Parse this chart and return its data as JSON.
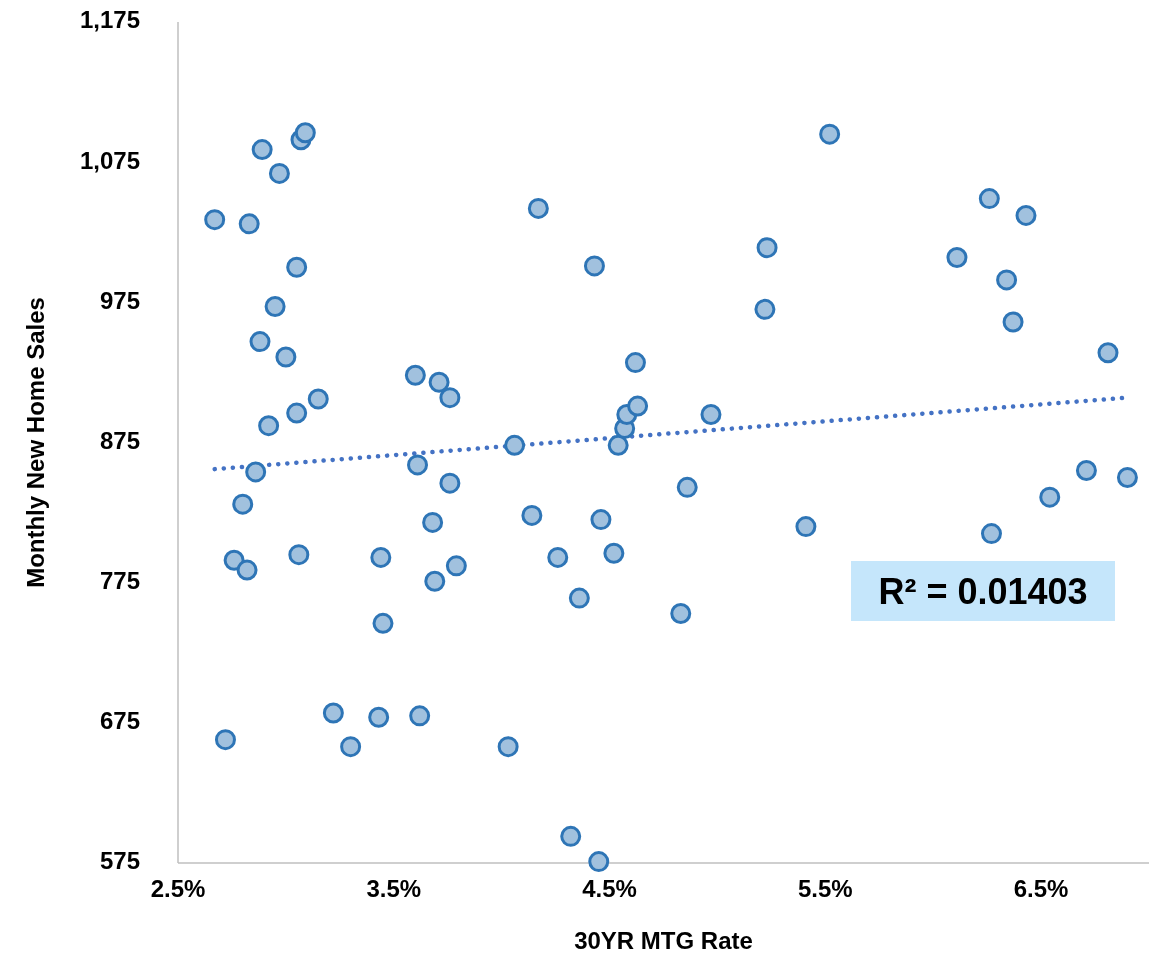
{
  "chart_data": {
    "type": "scatter",
    "xlabel": "30YR MTG Rate",
    "ylabel": "Monthly New Home Sales",
    "xlim": [
      2.5,
      7.0
    ],
    "ylim": [
      575,
      1175
    ],
    "xticks": [
      {
        "value": 2.5,
        "label": "2.5%"
      },
      {
        "value": 3.5,
        "label": "3.5%"
      },
      {
        "value": 4.5,
        "label": "4.5%"
      },
      {
        "value": 5.5,
        "label": "5.5%"
      },
      {
        "value": 6.5,
        "label": "6.5%"
      }
    ],
    "yticks": [
      575,
      675,
      775,
      875,
      975,
      {
        "value": 1075,
        "label": "1,075"
      },
      {
        "value": 1175,
        "label": "1,175"
      }
    ],
    "grid": false,
    "annotations": [
      "R² = 0.01403"
    ],
    "series": [
      {
        "color": "#2e75b6",
        "marker": "circle",
        "x": [
          2.67,
          2.72,
          2.76,
          2.8,
          2.82,
          2.83,
          2.86,
          2.88,
          2.89,
          2.92,
          2.95,
          2.97,
          3.0,
          3.05,
          3.05,
          3.06,
          3.07,
          3.09,
          3.15,
          3.22,
          3.3,
          3.43,
          3.44,
          3.45,
          3.6,
          3.61,
          3.62,
          3.68,
          3.69,
          3.71,
          3.76,
          3.76,
          3.79,
          4.03,
          4.06,
          4.14,
          4.17,
          4.26,
          4.32,
          4.36,
          4.43,
          4.45,
          4.46,
          4.52,
          4.54,
          4.57,
          4.58,
          4.62,
          4.63,
          4.83,
          4.86,
          4.97,
          5.23,
          5.22,
          5.41,
          5.52,
          6.11,
          6.26,
          6.27,
          6.34,
          6.37,
          6.43,
          6.54,
          6.71,
          6.81,
          6.9
        ],
        "values": [
          1034,
          663,
          791,
          831,
          784,
          1031,
          854,
          947,
          1084,
          887,
          972,
          1067,
          936,
          1000,
          896,
          795,
          1091,
          1096,
          906,
          682,
          658,
          679,
          793,
          746,
          923,
          859,
          680,
          818,
          776,
          918,
          907,
          846,
          787,
          658,
          873,
          823,
          1042,
          793,
          594,
          764,
          1001,
          576,
          820,
          796,
          873,
          885,
          895,
          932,
          901,
          753,
          843,
          895,
          1014,
          970,
          815,
          1095,
          1007,
          1049,
          810,
          991,
          961,
          1037,
          836,
          855,
          939,
          850
        ]
      },
      {
        "type": "line",
        "color": "#4472c4",
        "line_style": "dotted",
        "x": [
          2.67,
          6.9
        ],
        "values": [
          856,
          907
        ]
      }
    ]
  }
}
